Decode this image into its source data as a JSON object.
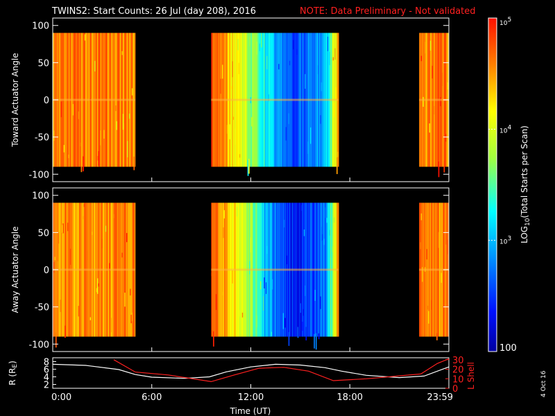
{
  "header": {
    "title": "TWINS2: Start Counts: 26 Jul (day 208), 2016",
    "note": "NOTE: Data Preliminary - Not validated"
  },
  "footer": {
    "date_stamp": "4 Oct 16"
  },
  "colors": {
    "note": "#ff2020",
    "ephemeris_R": "#ffffff",
    "ephemeris_L": "#ff2020",
    "background": "#000000"
  },
  "chart_data": [
    {
      "type": "heatmap",
      "ylabel": "Toward Actuator Angle",
      "ylim": [
        -110,
        110
      ],
      "yticks": [
        100,
        50,
        0,
        -50,
        -100
      ],
      "x_hours_range": [
        0,
        24
      ],
      "data_blocks_hours": [
        [
          0.0,
          5.0
        ],
        [
          9.6,
          17.3
        ],
        [
          22.2,
          24.0
        ]
      ],
      "angle_range": [
        -90,
        90
      ],
      "mean_log_counts_by_time": [
        {
          "hour": 0.0,
          "value": 4.6
        },
        {
          "hour": 2.5,
          "value": 4.6
        },
        {
          "hour": 4.9,
          "value": 4.6
        },
        {
          "hour": 9.6,
          "value": 4.7
        },
        {
          "hour": 10.5,
          "value": 4.4
        },
        {
          "hour": 11.5,
          "value": 4.0
        },
        {
          "hour": 12.5,
          "value": 3.5
        },
        {
          "hour": 13.5,
          "value": 2.9
        },
        {
          "hour": 14.5,
          "value": 2.6
        },
        {
          "hour": 15.5,
          "value": 2.7
        },
        {
          "hour": 16.5,
          "value": 3.0
        },
        {
          "hour": 17.3,
          "value": 4.5
        },
        {
          "hour": 22.2,
          "value": 4.6
        },
        {
          "hour": 24.0,
          "value": 4.6
        }
      ]
    },
    {
      "type": "heatmap",
      "ylabel": "Away Actuator Angle",
      "ylim": [
        -110,
        110
      ],
      "yticks": [
        100,
        50,
        0,
        -50,
        -100
      ],
      "x_hours_range": [
        0,
        24
      ],
      "data_blocks_hours": [
        [
          0.0,
          5.0
        ],
        [
          9.6,
          17.3
        ],
        [
          22.2,
          24.0
        ]
      ],
      "angle_range": [
        -90,
        90
      ],
      "mean_log_counts_by_time": [
        {
          "hour": 0.0,
          "value": 4.6
        },
        {
          "hour": 2.5,
          "value": 4.5
        },
        {
          "hour": 4.9,
          "value": 4.6
        },
        {
          "hour": 9.6,
          "value": 4.7
        },
        {
          "hour": 10.5,
          "value": 4.4
        },
        {
          "hour": 11.5,
          "value": 4.0
        },
        {
          "hour": 12.5,
          "value": 3.3
        },
        {
          "hour": 13.5,
          "value": 2.7
        },
        {
          "hour": 14.5,
          "value": 2.4
        },
        {
          "hour": 15.5,
          "value": 2.5
        },
        {
          "hour": 16.5,
          "value": 2.8
        },
        {
          "hour": 17.3,
          "value": 4.5
        },
        {
          "hour": 22.2,
          "value": 4.6
        },
        {
          "hour": 24.0,
          "value": 4.6
        }
      ]
    },
    {
      "type": "line",
      "xlabel": "Time (UT)",
      "xticks": [
        "0:00",
        "6:00",
        "12:00",
        "18:00",
        "23:59"
      ],
      "xtick_hours": [
        0,
        6,
        12,
        18,
        24
      ],
      "ylabel_left": "R (R",
      "ylabel_left_sub": "E",
      "ylabel_left_tail": ")",
      "ylabel_right": "L Shell",
      "ylim_left": [
        1,
        9
      ],
      "yticks_left": [
        8,
        6,
        4,
        2
      ],
      "ylim_right": [
        0,
        32
      ],
      "yticks_right": [
        30,
        20,
        10,
        0
      ],
      "series": [
        {
          "name": "R",
          "axis": "left",
          "points": [
            [
              0,
              7.3
            ],
            [
              2,
              7.0
            ],
            [
              4,
              5.9
            ],
            [
              5,
              4.6
            ],
            [
              6,
              3.9
            ],
            [
              8,
              3.6
            ],
            [
              9.5,
              4.0
            ],
            [
              10.5,
              5.3
            ],
            [
              12,
              6.6
            ],
            [
              13.5,
              7.3
            ],
            [
              15,
              7.1
            ],
            [
              16.5,
              6.4
            ],
            [
              17.5,
              5.5
            ],
            [
              19,
              4.4
            ],
            [
              21,
              3.8
            ],
            [
              22.5,
              4.2
            ],
            [
              24,
              6.6
            ]
          ]
        },
        {
          "name": "L Shell",
          "axis": "right",
          "points": [
            [
              3.7,
              30
            ],
            [
              5,
              17
            ],
            [
              7,
              14
            ],
            [
              9.6,
              7
            ],
            [
              11,
              14
            ],
            [
              12.5,
              21
            ],
            [
              14,
              22
            ],
            [
              15.5,
              18
            ],
            [
              17,
              8
            ],
            [
              19,
              10
            ],
            [
              22.3,
              15
            ],
            [
              23.3,
              26
            ],
            [
              24,
              31
            ]
          ]
        }
      ]
    },
    {
      "type": "colorbar",
      "label_main": "LOG",
      "label_sub": "10",
      "label_tail": "(Total Starts per Scan)",
      "scale": "log",
      "range": [
        100,
        100000
      ],
      "ticks": [
        {
          "value": 100,
          "base": "100",
          "exp": ""
        },
        {
          "value": 1000,
          "base": "10",
          "exp": "3"
        },
        {
          "value": 10000,
          "base": "10",
          "exp": "4"
        },
        {
          "value": 100000,
          "base": "10",
          "exp": "5"
        }
      ]
    }
  ]
}
